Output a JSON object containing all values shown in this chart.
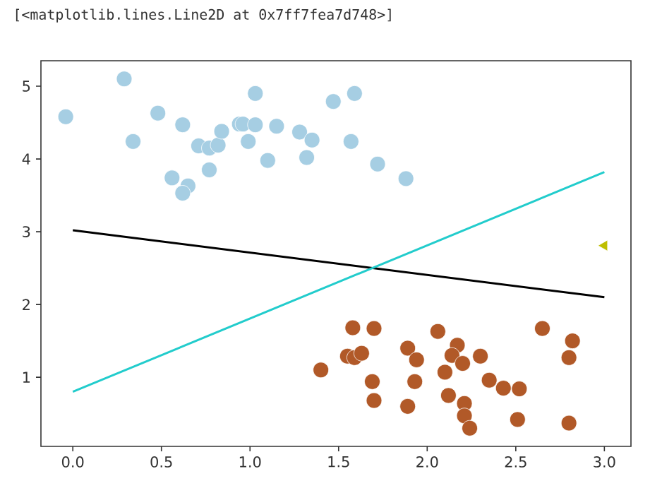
{
  "chart_data": {
    "type": "scatter",
    "annotations": [
      "[<matplotlib.lines.Line2D at 0x7ff7fea7d748>]"
    ],
    "xlim": [
      -0.18,
      3.15
    ],
    "ylim": [
      0.05,
      5.35
    ],
    "xticks": [
      {
        "value": 0,
        "label": "0.0"
      },
      {
        "value": 0.5,
        "label": "0.5"
      },
      {
        "value": 1,
        "label": "1.0"
      },
      {
        "value": 1.5,
        "label": "1.5"
      },
      {
        "value": 2,
        "label": "2.0"
      },
      {
        "value": 2.5,
        "label": "2.5"
      },
      {
        "value": 3,
        "label": "3.0"
      }
    ],
    "yticks": [
      1,
      2,
      3,
      4,
      5
    ],
    "grid": false,
    "series": [
      {
        "marker": "circle",
        "color": "#a6cee3",
        "x": [
          -0.04,
          0.29,
          0.34,
          0.48,
          0.62,
          0.56,
          0.65,
          0.62,
          0.71,
          0.77,
          0.77,
          0.82,
          0.84,
          0.94,
          0.96,
          0.99,
          1.03,
          1.03,
          1.1,
          1.15,
          1.28,
          1.35,
          1.32,
          1.47,
          1.59,
          1.57,
          1.72,
          1.88
        ],
        "values": [
          4.58,
          5.1,
          4.24,
          4.63,
          4.47,
          3.74,
          3.63,
          3.53,
          4.18,
          4.15,
          3.85,
          4.19,
          4.38,
          4.48,
          4.48,
          4.24,
          4.47,
          4.9,
          3.98,
          4.45,
          4.37,
          4.26,
          4.02,
          4.79,
          4.9,
          4.24,
          3.93,
          3.73
        ]
      },
      {
        "marker": "circle",
        "color": "#b15928",
        "x": [
          1.4,
          1.58,
          1.7,
          1.55,
          1.59,
          1.63,
          1.69,
          1.7,
          1.89,
          1.89,
          1.94,
          1.93,
          2.06,
          2.1,
          2.17,
          2.14,
          2.2,
          2.12,
          2.21,
          2.21,
          2.24,
          2.3,
          2.35,
          2.43,
          2.52,
          2.51,
          2.65,
          2.82,
          2.8,
          2.8
        ],
        "values": [
          1.1,
          1.68,
          1.67,
          1.29,
          1.27,
          1.33,
          0.94,
          0.68,
          0.6,
          1.4,
          1.24,
          0.94,
          1.63,
          1.07,
          1.44,
          1.3,
          1.19,
          0.75,
          0.64,
          0.47,
          0.3,
          1.29,
          0.96,
          0.85,
          0.84,
          0.42,
          1.67,
          1.5,
          1.27,
          0.37
        ]
      },
      {
        "type": "line",
        "marker": "none",
        "line_style": "solid",
        "color": "#000000",
        "x": [
          0,
          3
        ],
        "values": [
          3.02,
          2.1
        ]
      },
      {
        "type": "line",
        "marker": "none",
        "line_style": "solid",
        "color": "#22cccc",
        "x": [
          0,
          3
        ],
        "values": [
          0.8,
          3.82
        ]
      },
      {
        "marker": "triangle",
        "color": "#bfbf00",
        "x": [
          3.0
        ],
        "values": [
          2.81
        ]
      }
    ]
  }
}
